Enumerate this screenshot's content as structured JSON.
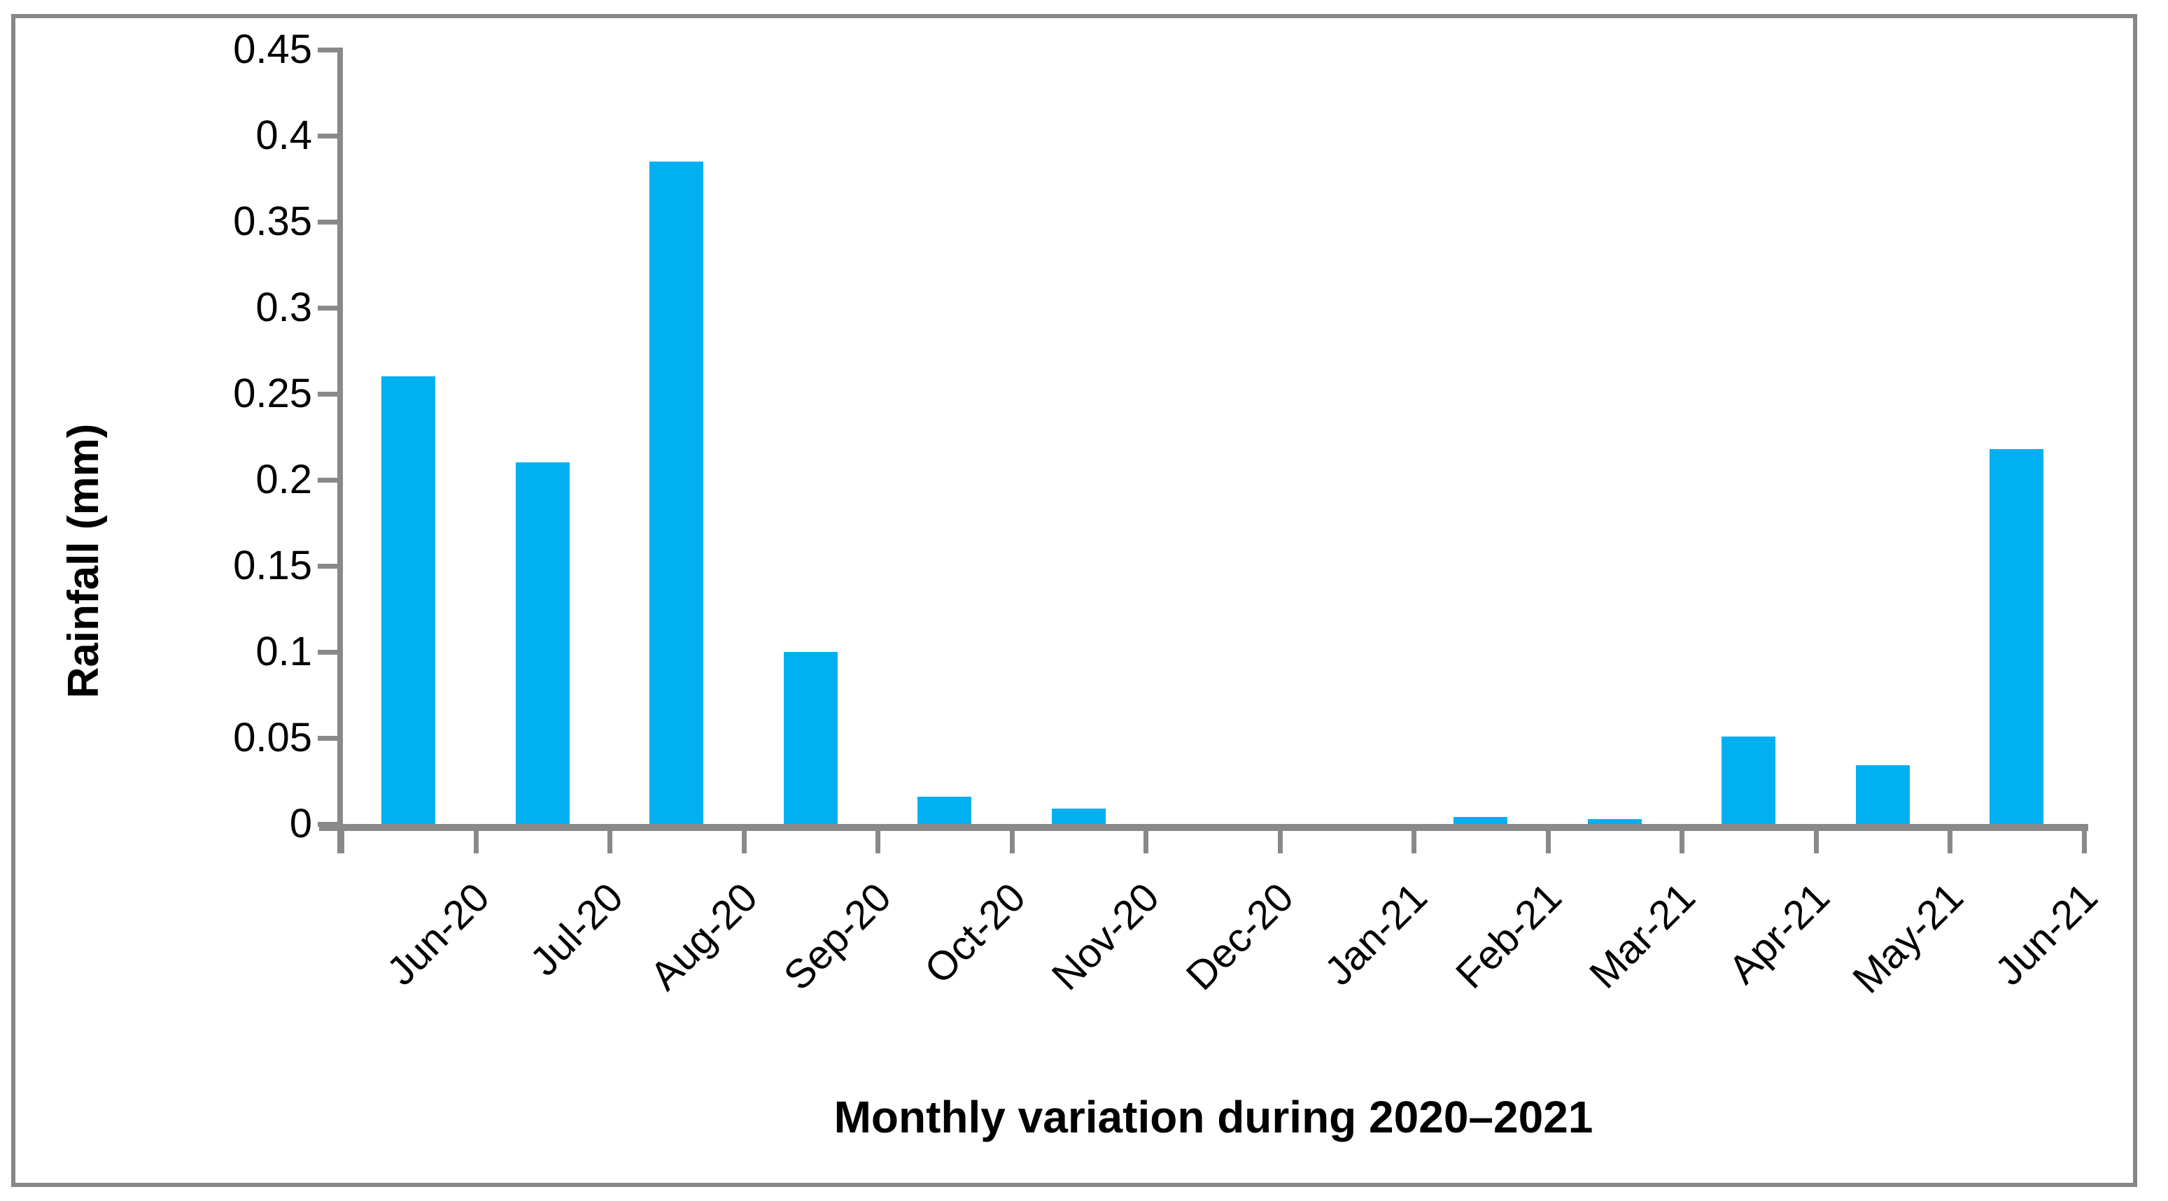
{
  "chart_data": {
    "type": "bar",
    "title": "",
    "categories": [
      "Jun-20",
      "Jul-20",
      "Aug-20",
      "Sep-20",
      "Oct-20",
      "Nov-20",
      "Dec-20",
      "Jan-21",
      "Feb-21",
      "Mar-21",
      "Apr-21",
      "May-21",
      "Jun-21"
    ],
    "values": [
      0.26,
      0.21,
      0.385,
      0.1,
      0.016,
      0.009,
      0,
      0,
      0.004,
      0.003,
      0.051,
      0.034,
      0.218
    ],
    "series_name": "Rainfall",
    "xlabel": "Monthly variation during 2020–2021",
    "ylabel": "Rainfall (mm)",
    "ylim": [
      0,
      0.45
    ],
    "ytick_step": 0.05,
    "ytick_labels": [
      "0",
      "0.05",
      "0.1",
      "0.15",
      "0.2",
      "0.25",
      "0.3",
      "0.35",
      "0.4",
      "0.45"
    ],
    "legend": "none",
    "grid": "off",
    "colors": {
      "bar_fill": "#00B0F0",
      "axis": "#898989",
      "frame_border": "#878787",
      "text": "#000000",
      "background": "#FFFFFF"
    }
  }
}
